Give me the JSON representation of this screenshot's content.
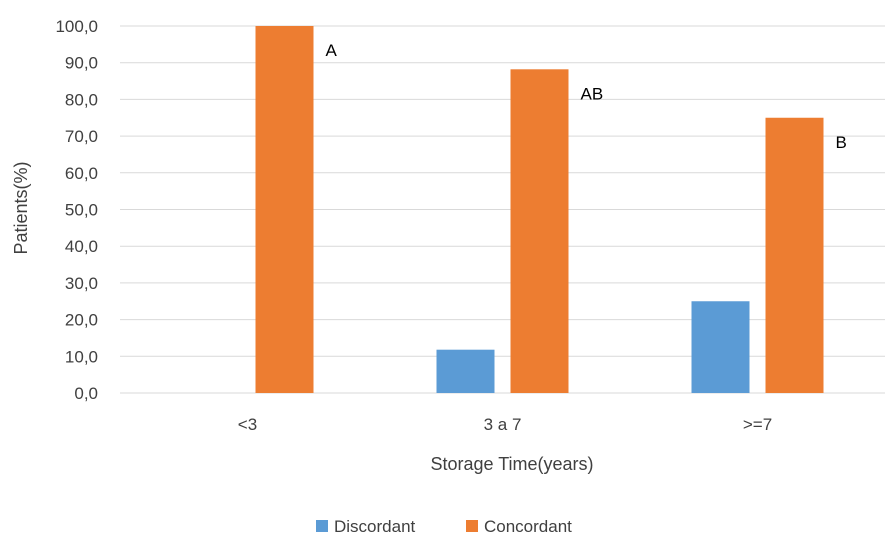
{
  "chart_data": {
    "type": "bar",
    "title": "",
    "xlabel": "Storage Time(years)",
    "ylabel": "Patients(%)",
    "categories": [
      "<3",
      "3 a 7",
      ">=7"
    ],
    "series": [
      {
        "name": "Discordant",
        "values": [
          0.0,
          11.8,
          25.0
        ],
        "color": "#5b9bd5"
      },
      {
        "name": "Concordant",
        "values": [
          100.0,
          88.2,
          75.0
        ],
        "color": "#ed7d31"
      }
    ],
    "annotations": [
      {
        "category_index": 0,
        "series_index": 1,
        "text": "A"
      },
      {
        "category_index": 1,
        "series_index": 1,
        "text": "AB"
      },
      {
        "category_index": 2,
        "series_index": 1,
        "text": "B"
      }
    ],
    "ylim": [
      0,
      100
    ],
    "ytick_step": 10,
    "ytick_labels": [
      "0,0",
      "10,0",
      "20,0",
      "30,0",
      "40,0",
      "50,0",
      "60,0",
      "70,0",
      "80,0",
      "90,0",
      "100,0"
    ],
    "grid": true,
    "grid_color": "#d9d9d9",
    "legend_position": "bottom"
  }
}
